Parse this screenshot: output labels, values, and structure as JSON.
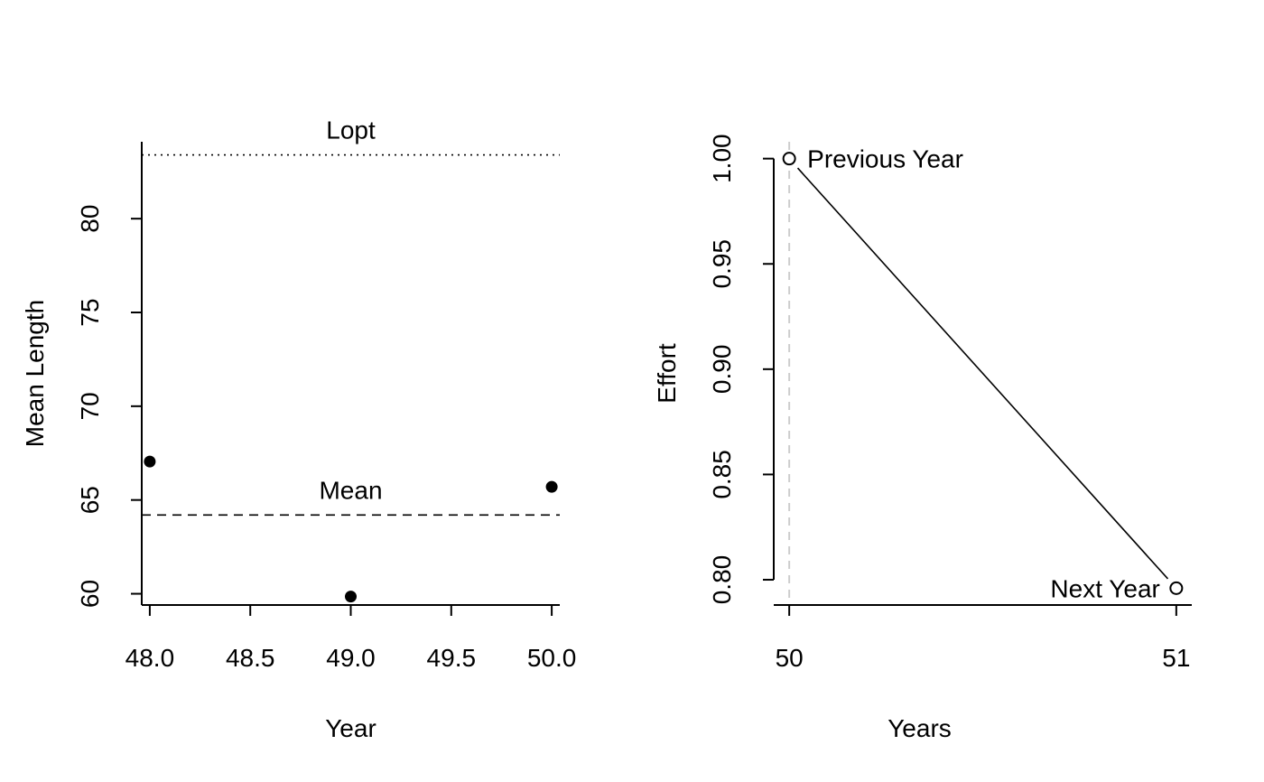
{
  "chart_data": [
    {
      "type": "scatter",
      "xlabel": "Year",
      "ylabel": "Mean Length",
      "xlim": [
        47.96,
        50.04
      ],
      "ylim": [
        59.4,
        84.1
      ],
      "xticks": [
        "48.0",
        "48.5",
        "49.0",
        "49.5",
        "50.0"
      ],
      "yticks": [
        "60",
        "65",
        "70",
        "75",
        "80"
      ],
      "grid": false,
      "points": {
        "x": [
          48,
          49,
          50
        ],
        "y": [
          67.05,
          59.85,
          65.7
        ]
      },
      "reference_lines": [
        {
          "label": "Lopt",
          "y": 83.4,
          "style": "dotted"
        },
        {
          "label": "Mean",
          "y": 64.2,
          "style": "dashed"
        }
      ]
    },
    {
      "type": "line",
      "xlabel": "Years",
      "ylabel": "Effort",
      "xlim": [
        49.96,
        51.04
      ],
      "ylim": [
        0.788,
        1.008
      ],
      "xticks": [
        "50",
        "51"
      ],
      "yticks": [
        "0.80",
        "0.85",
        "0.90",
        "0.95",
        "1.00"
      ],
      "grid": false,
      "series": [
        {
          "x": [
            50,
            51
          ],
          "y": [
            1.0,
            0.796
          ]
        }
      ],
      "point_labels": [
        {
          "label": "Previous Year",
          "x": 50,
          "y": 1.0
        },
        {
          "label": "Next Year",
          "x": 51,
          "y": 0.796
        }
      ],
      "vline": {
        "x": 50,
        "style": "dashed",
        "color": "#cccccc"
      }
    }
  ]
}
